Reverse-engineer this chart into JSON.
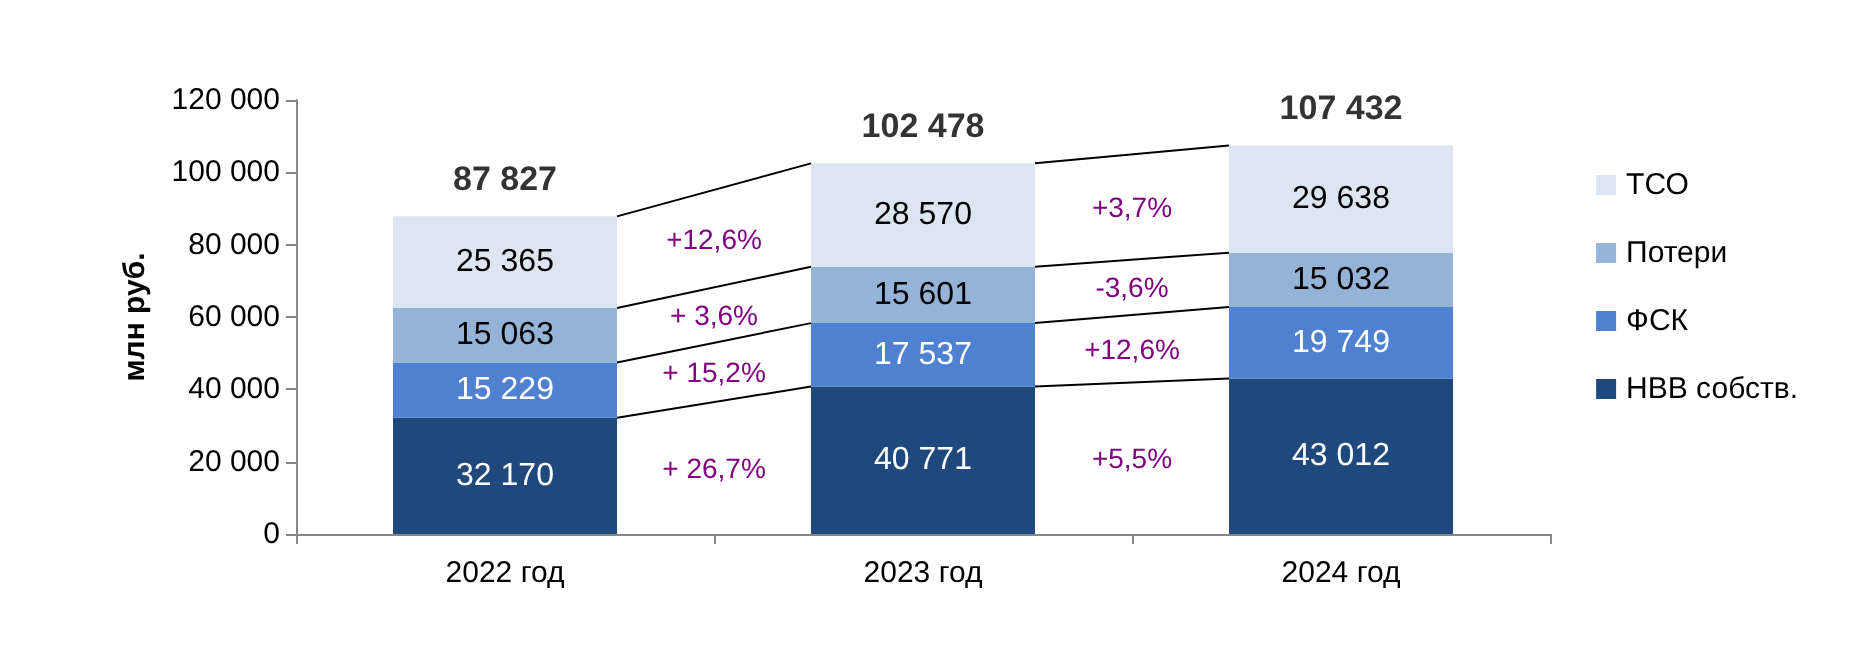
{
  "chart_data": {
    "type": "bar",
    "stacked": true,
    "ylabel": "млн руб.",
    "categories": [
      "2022 год",
      "2023 год",
      "2024 год"
    ],
    "series": [
      {
        "name": "НВВ собств.",
        "color": "#1f497d",
        "values": [
          32170,
          40771,
          43012
        ],
        "value_labels": [
          "32 170",
          "40 771",
          "43 012"
        ]
      },
      {
        "name": "ФСК",
        "color": "#4f81d0",
        "values": [
          15229,
          17537,
          19749
        ],
        "value_labels": [
          "15 229",
          "17 537",
          "19 749"
        ]
      },
      {
        "name": "Потери",
        "color": "#95b3d7",
        "values": [
          15063,
          15601,
          15032
        ],
        "value_labels": [
          "15 063",
          "15 601",
          "15 032"
        ]
      },
      {
        "name": "ТСО",
        "color": "#dce6f2",
        "values": [
          25365,
          28570,
          29638
        ],
        "value_labels": [
          "25 365",
          "28 570",
          "29 638"
        ]
      }
    ],
    "totals": [
      "87 827",
      "102 478",
      "107 432"
    ],
    "annotations": [
      "+ 26,7%",
      "+ 15,2%",
      "+ 3,6%",
      "+12,6%",
      "+5,5%",
      "+12,6%",
      "-3,6%",
      "+3,7%"
    ],
    "ylim": [
      0,
      120000
    ],
    "yticks": [
      {
        "value": 0,
        "label": "0"
      },
      {
        "value": 20000,
        "label": "20 000"
      },
      {
        "value": 40000,
        "label": "40 000"
      },
      {
        "value": 60000,
        "label": "60 000"
      },
      {
        "value": 80000,
        "label": "80 000"
      },
      {
        "value": 100000,
        "label": "100 000"
      },
      {
        "value": 120000,
        "label": "120 000"
      }
    ],
    "grid": false,
    "legend": "right"
  }
}
